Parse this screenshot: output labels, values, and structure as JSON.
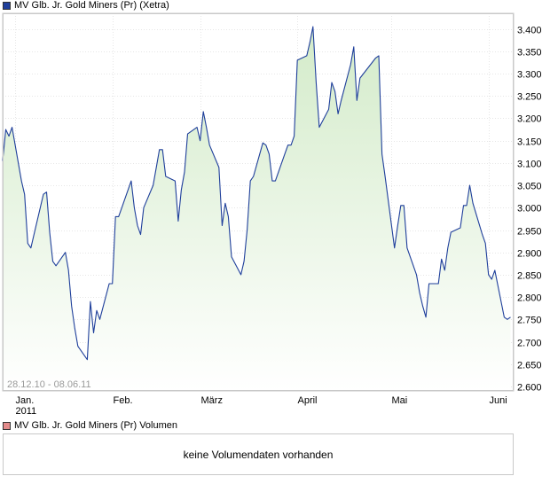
{
  "price_legend": {
    "label": "MV Glb. Jr. Gold Miners (Pr) (Xetra)",
    "color": "#1f3f9b"
  },
  "volume_legend": {
    "label": "MV Glb. Jr. Gold Miners (Pr) Volumen",
    "color": "#e38b8b"
  },
  "volume_panel": {
    "message": "keine Volumendaten vorhanden"
  },
  "date_range": "28.12.10 - 08.06.11",
  "chart_data": {
    "type": "area",
    "line_color": "#1f3f9b",
    "fill_top_color": "#d3ebc9",
    "fill_bottom_color": "#ffffff",
    "ylim": [
      2.59,
      3.435
    ],
    "grid": true,
    "y_ticks": [
      2.6,
      2.65,
      2.7,
      2.75,
      2.8,
      2.85,
      2.9,
      2.95,
      3.0,
      3.05,
      3.1,
      3.15,
      3.2,
      3.25,
      3.3,
      3.35,
      3.4
    ],
    "y_tick_labels": [
      "2.600",
      "2.650",
      "2.700",
      "2.750",
      "2.800",
      "2.850",
      "2.900",
      "2.950",
      "3.000",
      "3.050",
      "3.100",
      "3.150",
      "3.200",
      "3.250",
      "3.300",
      "3.350",
      "3.400"
    ],
    "x_ticks": [
      {
        "date": "2011-01-01",
        "label": "Jan.",
        "sublabel": "2011"
      },
      {
        "date": "2011-02-01",
        "label": "Feb."
      },
      {
        "date": "2011-03-01",
        "label": "März"
      },
      {
        "date": "2011-04-01",
        "label": "April"
      },
      {
        "date": "2011-05-01",
        "label": "Mai"
      },
      {
        "date": "2011-06-01",
        "label": "Juni"
      }
    ],
    "x_range": [
      "2010-12-28",
      "2011-06-09"
    ],
    "series": [
      {
        "dates": [
          "2010-12-28",
          "2010-12-29",
          "2010-12-30",
          "2010-12-31",
          "2011-01-03",
          "2011-01-04",
          "2011-01-05",
          "2011-01-06",
          "2011-01-07",
          "2011-01-10",
          "2011-01-11",
          "2011-01-12",
          "2011-01-13",
          "2011-01-14",
          "2011-01-17",
          "2011-01-18",
          "2011-01-19",
          "2011-01-20",
          "2011-01-21",
          "2011-01-24",
          "2011-01-25",
          "2011-01-26",
          "2011-01-27",
          "2011-01-28",
          "2011-01-31",
          "2011-02-01",
          "2011-02-02",
          "2011-02-03",
          "2011-02-04",
          "2011-02-07",
          "2011-02-08",
          "2011-02-09",
          "2011-02-10",
          "2011-02-11",
          "2011-02-14",
          "2011-02-15",
          "2011-02-16",
          "2011-02-17",
          "2011-02-18",
          "2011-02-21",
          "2011-02-22",
          "2011-02-23",
          "2011-02-24",
          "2011-02-25",
          "2011-02-28",
          "2011-03-01",
          "2011-03-02",
          "2011-03-03",
          "2011-03-04",
          "2011-03-07",
          "2011-03-08",
          "2011-03-09",
          "2011-03-10",
          "2011-03-11",
          "2011-03-14",
          "2011-03-15",
          "2011-03-16",
          "2011-03-17",
          "2011-03-18",
          "2011-03-21",
          "2011-03-22",
          "2011-03-23",
          "2011-03-24",
          "2011-03-25",
          "2011-03-28",
          "2011-03-29",
          "2011-03-30",
          "2011-03-31",
          "2011-04-01",
          "2011-04-04",
          "2011-04-05",
          "2011-04-06",
          "2011-04-07",
          "2011-04-08",
          "2011-04-11",
          "2011-04-12",
          "2011-04-13",
          "2011-04-14",
          "2011-04-15",
          "2011-04-18",
          "2011-04-19",
          "2011-04-20",
          "2011-04-21",
          "2011-04-26",
          "2011-04-27",
          "2011-04-28",
          "2011-04-29",
          "2011-05-02",
          "2011-05-03",
          "2011-05-04",
          "2011-05-05",
          "2011-05-06",
          "2011-05-09",
          "2011-05-10",
          "2011-05-11",
          "2011-05-12",
          "2011-05-13",
          "2011-05-16",
          "2011-05-17",
          "2011-05-18",
          "2011-05-19",
          "2011-05-20",
          "2011-05-23",
          "2011-05-24",
          "2011-05-25",
          "2011-05-26",
          "2011-05-27",
          "2011-05-30",
          "2011-05-31",
          "2011-06-01",
          "2011-06-02",
          "2011-06-03",
          "2011-06-06",
          "2011-06-07",
          "2011-06-08"
        ],
        "values": [
          3.105,
          3.175,
          3.16,
          3.18,
          3.06,
          3.03,
          2.92,
          2.91,
          2.94,
          3.03,
          3.035,
          2.945,
          2.88,
          2.87,
          2.9,
          2.86,
          2.78,
          2.73,
          2.69,
          2.66,
          2.79,
          2.72,
          2.77,
          2.75,
          2.83,
          2.83,
          2.98,
          2.98,
          3.0,
          3.06,
          3.0,
          2.96,
          2.94,
          3.0,
          3.05,
          3.09,
          3.13,
          3.13,
          3.07,
          3.06,
          2.97,
          3.04,
          3.08,
          3.165,
          3.18,
          3.15,
          3.215,
          3.18,
          3.14,
          3.09,
          2.96,
          3.01,
          2.98,
          2.89,
          2.85,
          2.88,
          2.95,
          3.06,
          3.07,
          3.145,
          3.14,
          3.12,
          3.06,
          3.06,
          3.12,
          3.14,
          3.14,
          3.16,
          3.33,
          3.34,
          3.37,
          3.405,
          3.28,
          3.18,
          3.22,
          3.28,
          3.26,
          3.21,
          3.24,
          3.32,
          3.36,
          3.24,
          3.29,
          3.335,
          3.34,
          3.12,
          3.07,
          2.91,
          2.96,
          3.005,
          3.005,
          2.91,
          2.85,
          2.81,
          2.78,
          2.755,
          2.83,
          2.83,
          2.885,
          2.86,
          2.91,
          2.945,
          2.955,
          3.005,
          3.005,
          3.05,
          3.01,
          2.94,
          2.92,
          2.85,
          2.84,
          2.86,
          2.755,
          2.75,
          2.755
        ]
      }
    ]
  }
}
